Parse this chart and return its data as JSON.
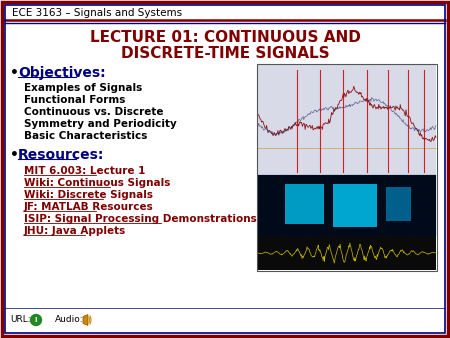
{
  "bg_color": "#ffffff",
  "border_outer_color": "#800000",
  "border_inner_color": "#000080",
  "header_text": "ECE 3163 – Signals and Systems",
  "header_color": "#000000",
  "header_font_size": 7.5,
  "title_line1": "LECTURE 01: CONTINUOUS AND",
  "title_line2": "DISCRETE-TIME SIGNALS",
  "title_color": "#800000",
  "title_font_size": 11,
  "objectives_label": "Objectives:",
  "objectives_color": "#000080",
  "objectives_font_size": 10,
  "objectives_items": [
    "Examples of Signals",
    "Functional Forms",
    "Continuous vs. Discrete",
    "Symmetry and Periodicity",
    "Basic Characteristics"
  ],
  "objectives_items_color": "#000000",
  "objectives_items_font_size": 7.5,
  "resources_label": "Resources:",
  "resources_color": "#000080",
  "resources_font_size": 10,
  "resources_items": [
    "MIT 6.003: Lecture 1",
    "Wiki: Continuous Signals",
    "Wiki: Discrete Signals",
    "JF: MATLAB Resources",
    "ISIP: Signal Processing Demonstrations",
    "JHU: Java Applets"
  ],
  "resources_items_color": "#800000",
  "resources_items_font_size": 7.5,
  "footer_url_text": "URL:",
  "footer_audio_text": "Audio:",
  "footer_color": "#000000",
  "footer_font_size": 6.5,
  "bullet_color": "#000000",
  "bullet_char": "•"
}
